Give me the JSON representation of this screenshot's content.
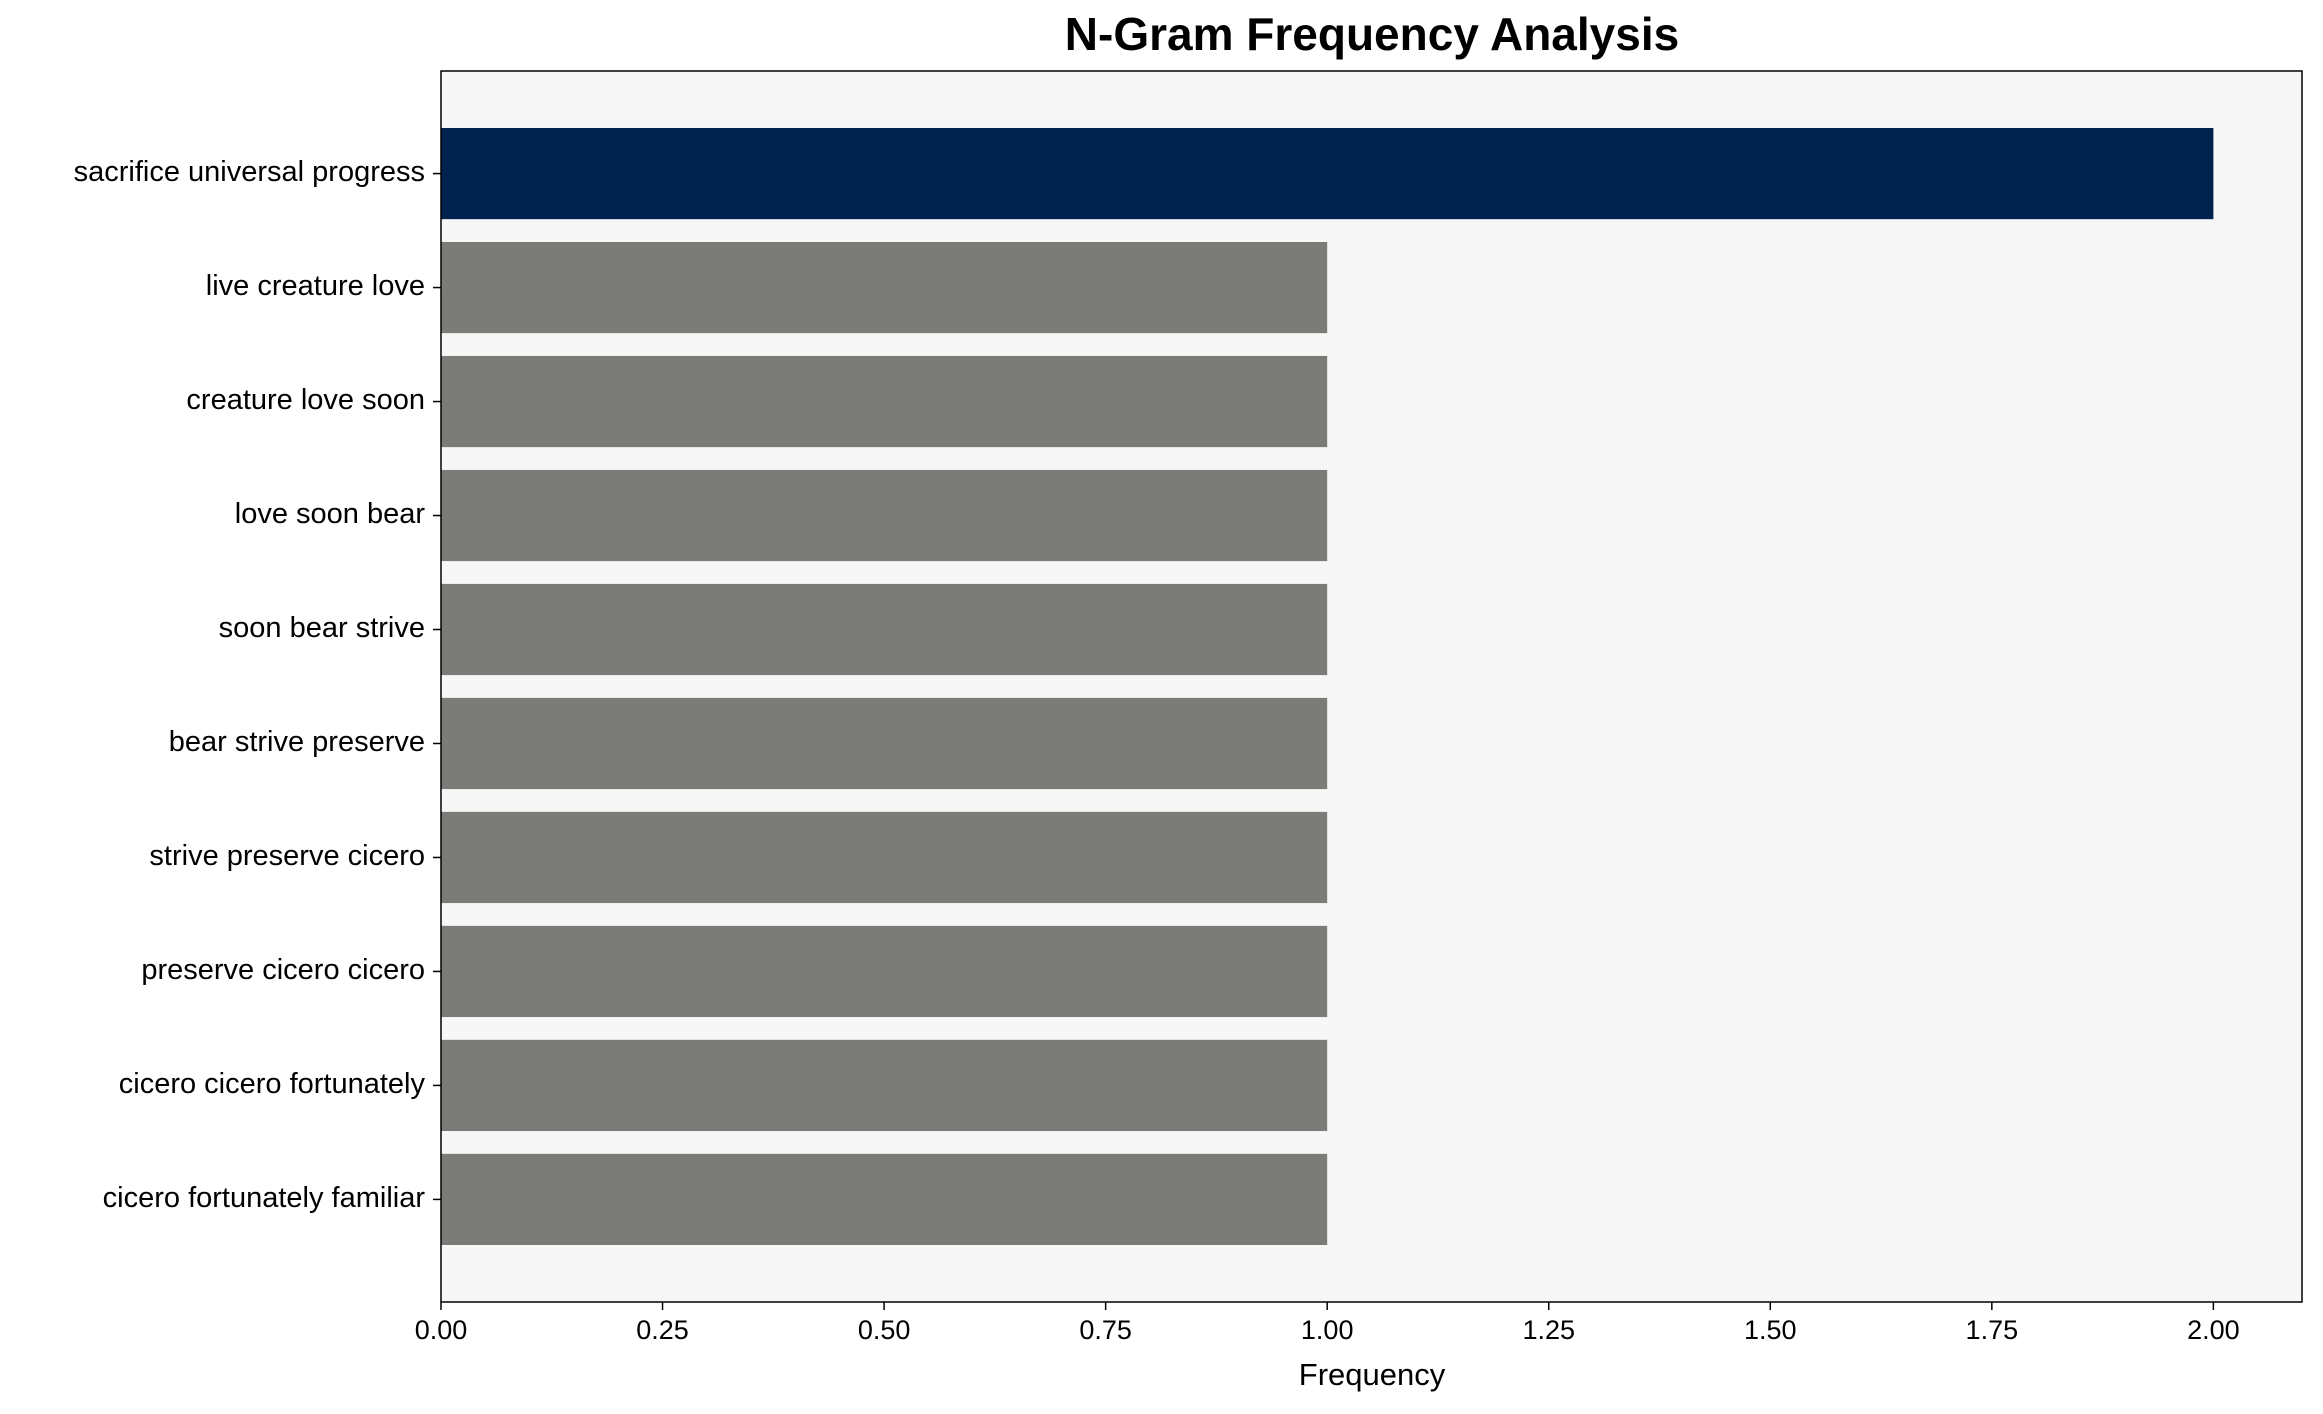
{
  "chart_data": {
    "type": "barh",
    "title": "N-Gram Frequency Analysis",
    "x_label": "Frequency",
    "categories": [
      "sacrifice universal progress",
      "live creature love",
      "creature love soon",
      "love soon bear",
      "soon bear strive",
      "bear strive preserve",
      "strive preserve cicero",
      "preserve cicero cicero",
      "cicero cicero fortunately",
      "cicero fortunately familiar"
    ],
    "values": [
      2,
      1,
      1,
      1,
      1,
      1,
      1,
      1,
      1,
      1
    ],
    "colors": [
      "#00224e",
      "#7b7b77",
      "#7b7b77",
      "#7b7b77",
      "#7b7b77",
      "#7b7b77",
      "#7b7b77",
      "#7b7b77",
      "#7b7b77",
      "#7b7b77"
    ],
    "xlim": [
      0,
      2.1
    ],
    "xticks": [
      {
        "value": 0,
        "label": "0.00"
      },
      {
        "value": 0.25,
        "label": "0.25"
      },
      {
        "value": 0.5,
        "label": "0.50"
      },
      {
        "value": 0.75,
        "label": "0.75"
      },
      {
        "value": 1,
        "label": "1.00"
      },
      {
        "value": 1.25,
        "label": "1.25"
      },
      {
        "value": 1.5,
        "label": "1.50"
      },
      {
        "value": 1.75,
        "label": "1.75"
      },
      {
        "value": 2,
        "label": "2.00"
      }
    ],
    "background": "#f7f7f7"
  }
}
